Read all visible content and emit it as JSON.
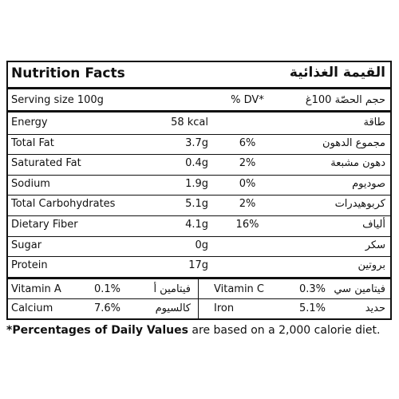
{
  "header": {
    "title_en": "Nutrition Facts",
    "title_ar": "القيمة الغذائية"
  },
  "serving": {
    "label_en": "Serving size 100g",
    "dv_label": "% DV*",
    "label_ar": "حجم الحصّة 100غ"
  },
  "rows": [
    {
      "en": "Energy",
      "value": "58 kcal",
      "dv": "",
      "ar": "طاقة"
    },
    {
      "en": "Total Fat",
      "value": "3.7g",
      "dv": "6%",
      "ar": "مجموع الدهون"
    },
    {
      "en": "Saturated Fat",
      "value": "0.4g",
      "dv": "2%",
      "ar": "دهون مشبعة"
    },
    {
      "en": "Sodium",
      "value": "1.9g",
      "dv": "0%",
      "ar": "صوديوم"
    },
    {
      "en": "Total Carbohydrates",
      "value": "5.1g",
      "dv": "2%",
      "ar": "كربوهيدرات"
    },
    {
      "en": "Dietary Fiber",
      "value": "4.1g",
      "dv": "16%",
      "ar": "ألياف"
    },
    {
      "en": "Sugar",
      "value": "0g",
      "dv": "",
      "ar": "سكر"
    },
    {
      "en": "Protein",
      "value": "17g",
      "dv": "",
      "ar": "بروتين"
    }
  ],
  "vitamins": [
    {
      "left": {
        "en": "Vitamin A",
        "value": "0.1%",
        "ar": "فيتامين أ"
      },
      "right": {
        "en": "Vitamin C",
        "value": "0.3%",
        "ar": "فيتامين سي"
      }
    },
    {
      "left": {
        "en": "Calcium",
        "value": "7.6%",
        "ar": "كالسيوم"
      },
      "right": {
        "en": "Iron",
        "value": "5.1%",
        "ar": "حديد"
      }
    }
  ],
  "footnote": {
    "bold": "*Percentages of Daily Values",
    "rest": " are based on a 2,000 calorie diet."
  }
}
